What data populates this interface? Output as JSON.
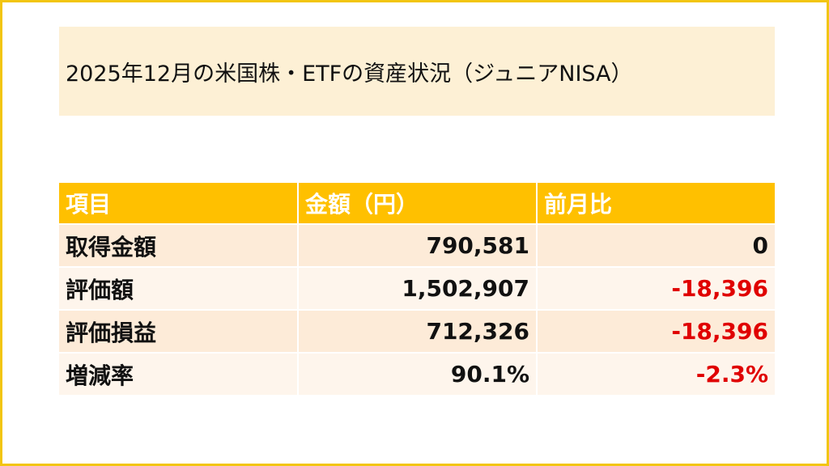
{
  "title": "2025年12月の米国株・ETFの資産状況（ジュニアNISA）",
  "table": {
    "headers": [
      "項目",
      "金額（円）",
      "前月比"
    ],
    "rows": [
      {
        "label": "取得金額",
        "amount": "790,581",
        "change": "0"
      },
      {
        "label": "評価額",
        "amount": "1,502,907",
        "change": "-18,396"
      },
      {
        "label": "評価損益",
        "amount": "712,326",
        "change": "-18,396"
      },
      {
        "label": "増減率",
        "amount": "90.1%",
        "change": "-2.3%"
      }
    ]
  },
  "colors": {
    "border": "#F2C511",
    "title_bg": "#FDF0D5",
    "header_bg": "#FFC000",
    "row_odd": "#FDEBD8",
    "row_even": "#FEF5EC",
    "negative": "#E00000"
  }
}
